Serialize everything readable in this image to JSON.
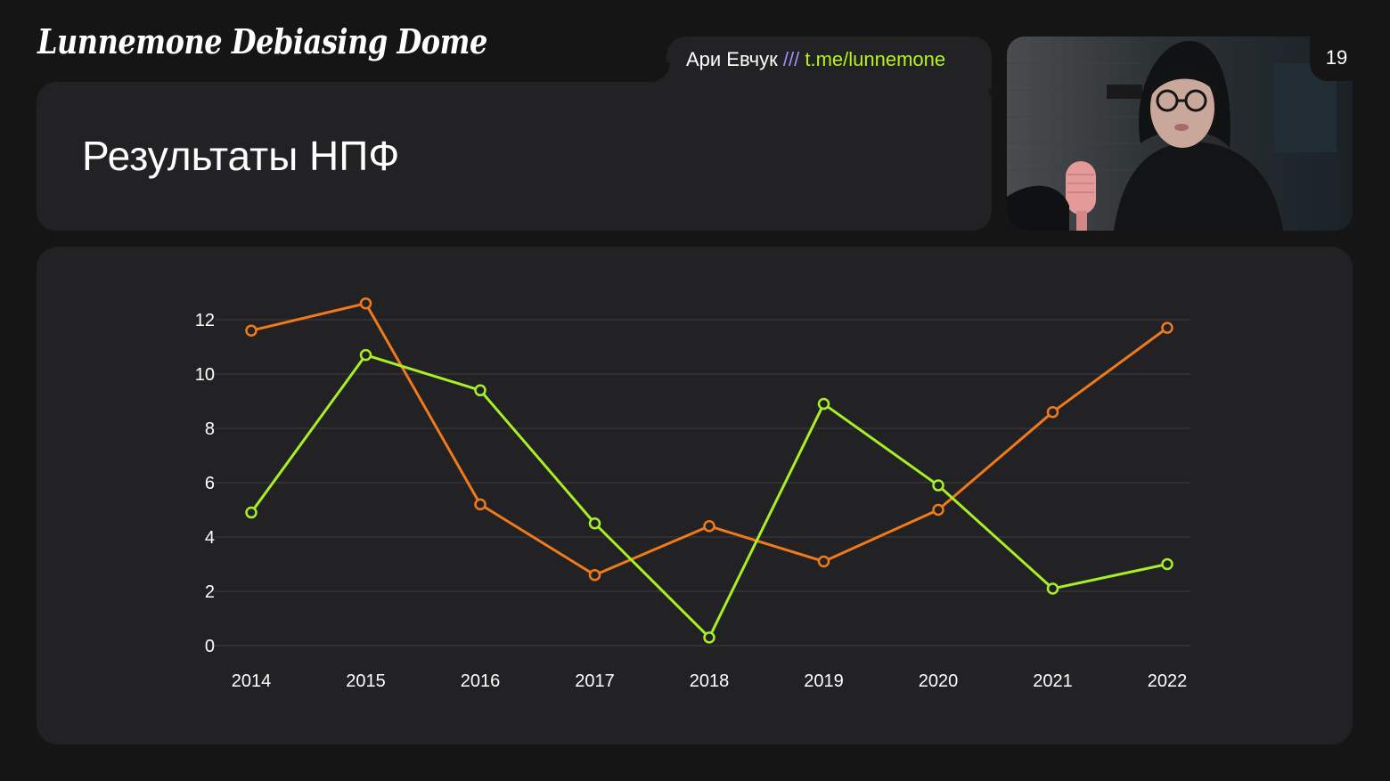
{
  "brand": {
    "logo_text": "Lunnemone Debiasing Dome"
  },
  "header": {
    "author_name": "Ари Евчук",
    "separator": "///",
    "author_link": "t.me/lunnemone"
  },
  "slide": {
    "title": "Результаты НПФ",
    "page_number": "19"
  },
  "colors": {
    "background": "#151515",
    "card": "#222224",
    "series_orange": "#f07a1a",
    "series_green": "#a8f025",
    "grid": "#3a3a3c"
  },
  "chart_data": {
    "type": "line",
    "title": "",
    "xlabel": "",
    "ylabel": "",
    "x": [
      "2014",
      "2015",
      "2016",
      "2017",
      "2018",
      "2019",
      "2020",
      "2021",
      "2022"
    ],
    "ylim": [
      0,
      12
    ],
    "yticks": [
      0,
      2,
      4,
      6,
      8,
      10,
      12
    ],
    "grid": true,
    "legend": "none",
    "series": [
      {
        "color": "#f07a1a",
        "values": [
          11.6,
          12.6,
          5.2,
          2.6,
          4.4,
          3.1,
          5.0,
          8.6,
          11.7
        ]
      },
      {
        "color": "#a8f025",
        "values": [
          4.9,
          10.7,
          9.4,
          4.5,
          0.3,
          8.9,
          5.9,
          2.1,
          3.0
        ]
      }
    ]
  }
}
